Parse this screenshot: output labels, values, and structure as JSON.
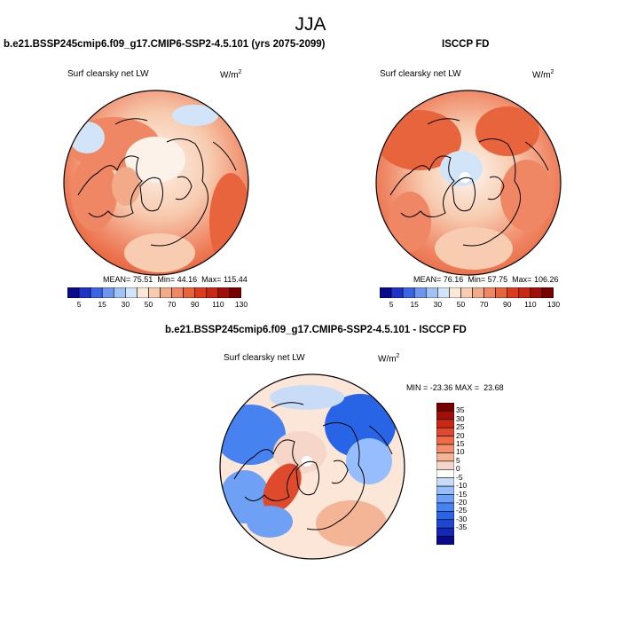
{
  "main_title": "JJA",
  "panels": {
    "left": {
      "title": "b.e21.BSSP245cmip6.f09_g17.CMIP6-SSP2-4.5.101 (yrs 2075-2099)",
      "variable": "Surf clearsky net LW",
      "unit_base": "W/m",
      "unit_exp": "2",
      "mean_label": "MEAN=",
      "mean": "75.51",
      "min_label": "Min=",
      "min": "44.16",
      "max_label": "Max=",
      "max": "115.44"
    },
    "right": {
      "title": "ISCCP FD",
      "variable": "Surf clearsky net LW",
      "unit_base": "W/m",
      "unit_exp": "2",
      "mean_label": "MEAN=",
      "mean": "76.16",
      "min_label": "Min=",
      "min": "57.75",
      "max_label": "Max=",
      "max": "106.26"
    },
    "diff": {
      "title": "b.e21.BSSP245cmip6.f09_g17.CMIP6-SSP2-4.5.101 - ISCCP FD",
      "variable": "Surf clearsky net LW",
      "unit_base": "W/m",
      "unit_exp": "2",
      "min_label": "MIN =",
      "min": "-23.36",
      "max_label": "MAX =",
      "max": "23.68"
    }
  },
  "colorbars": {
    "horizontal": {
      "colors": [
        "#0a0a8c",
        "#1e32c8",
        "#3c64e6",
        "#6e96f0",
        "#a0c3f5",
        "#d2e4f8",
        "#fbe6d8",
        "#f7ccb0",
        "#f3aa88",
        "#ef8664",
        "#e8643c",
        "#dc3c1e",
        "#c82814",
        "#a01008",
        "#780000"
      ],
      "tick_labels": [
        "5",
        "15",
        "30",
        "50",
        "70",
        "90",
        "110",
        "130"
      ]
    },
    "vertical": {
      "colors": [
        "#0a0a8c",
        "#1428b4",
        "#1e46d2",
        "#2864e6",
        "#4682f0",
        "#6ea0f5",
        "#96beff",
        "#c8dcf8",
        "#ffffff",
        "#f6d6c8",
        "#f4b496",
        "#f2906e",
        "#ec6a46",
        "#e04a2c",
        "#c82814",
        "#a01008",
        "#780000"
      ],
      "tick_labels": [
        "35",
        "30",
        "25",
        "20",
        "15",
        "10",
        "5",
        "0",
        "-5",
        "-10",
        "-15",
        "-20",
        "-25",
        "-30",
        "-35"
      ]
    }
  },
  "chart_data": [
    {
      "type": "heatmap",
      "projection": "north polar stereographic",
      "title": "b.e21.BSSP245cmip6.f09_g17.CMIP6-SSP2-4.5.101 (yrs 2075-2099)",
      "variable": "Surf clearsky net LW",
      "units": "W/m2",
      "mean": 75.51,
      "min": 44.16,
      "max": 115.44,
      "contour_levels": [
        5,
        10,
        15,
        20,
        30,
        40,
        50,
        60,
        70,
        80,
        90,
        100,
        110,
        120,
        130
      ]
    },
    {
      "type": "heatmap",
      "projection": "north polar stereographic",
      "title": "ISCCP FD",
      "variable": "Surf clearsky net LW",
      "units": "W/m2",
      "mean": 76.16,
      "min": 57.75,
      "max": 106.26,
      "contour_levels": [
        5,
        10,
        15,
        20,
        30,
        40,
        50,
        60,
        70,
        80,
        90,
        100,
        110,
        120,
        130
      ]
    },
    {
      "type": "heatmap",
      "projection": "north polar stereographic",
      "title": "b.e21.BSSP245cmip6.f09_g17.CMIP6-SSP2-4.5.101 - ISCCP FD",
      "variable": "Surf clearsky net LW",
      "units": "W/m2",
      "min": -23.36,
      "max": 23.68,
      "contour_levels": [
        -35,
        -30,
        -25,
        -20,
        -15,
        -10,
        -5,
        0,
        5,
        10,
        15,
        20,
        25,
        30,
        35
      ]
    }
  ]
}
